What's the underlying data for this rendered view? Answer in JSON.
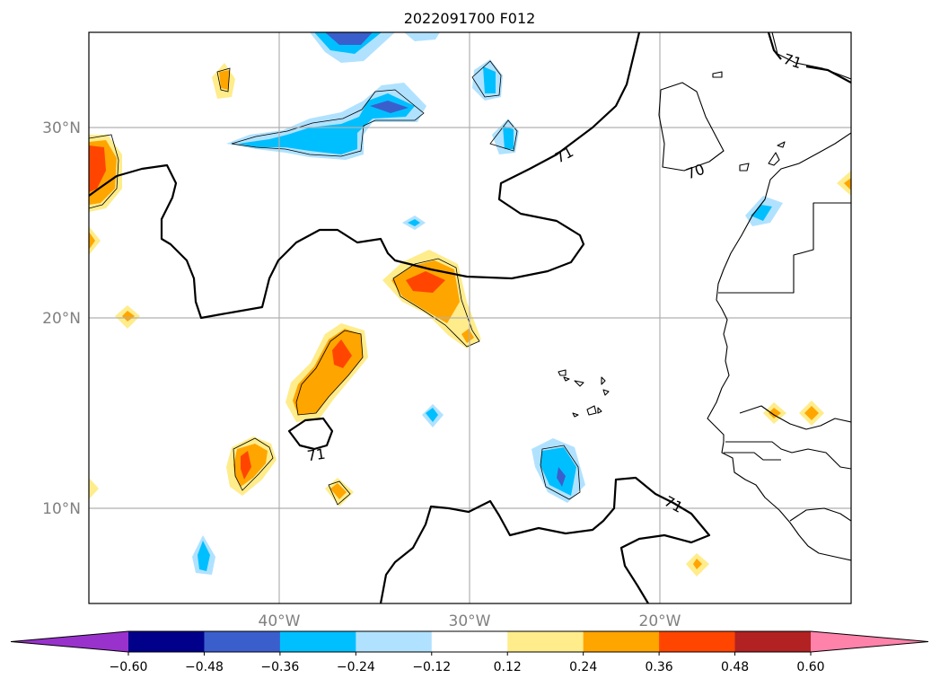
{
  "title": "2022091700 F012",
  "axes": {
    "lon_labels": [
      "40°W",
      "30°W",
      "20°W"
    ],
    "lat_labels": [
      "30°N",
      "20°N",
      "10°N"
    ]
  },
  "contour_labels": [
    "71",
    "71",
    "71",
    "71",
    "70"
  ],
  "colorbar": {
    "ticks": [
      "−0.60",
      "−0.48",
      "−0.36",
      "−0.24",
      "−0.12",
      "0.12",
      "0.24",
      "0.36",
      "0.48",
      "0.60"
    ],
    "colors": [
      "#9932cc",
      "#00008b",
      "#3a5fcd",
      "#00bfff",
      "#b0e2ff",
      "#ffffff",
      "#ffec8b",
      "#ffa500",
      "#ff4500",
      "#b22222",
      "#ff82ab"
    ]
  },
  "palette": {
    "yellow": "#ffec8b",
    "orange": "#ffa500",
    "red": "#ff4500",
    "lightblue": "#b0e2ff",
    "blue": "#00bfff",
    "royal": "#3a5fcd"
  }
}
